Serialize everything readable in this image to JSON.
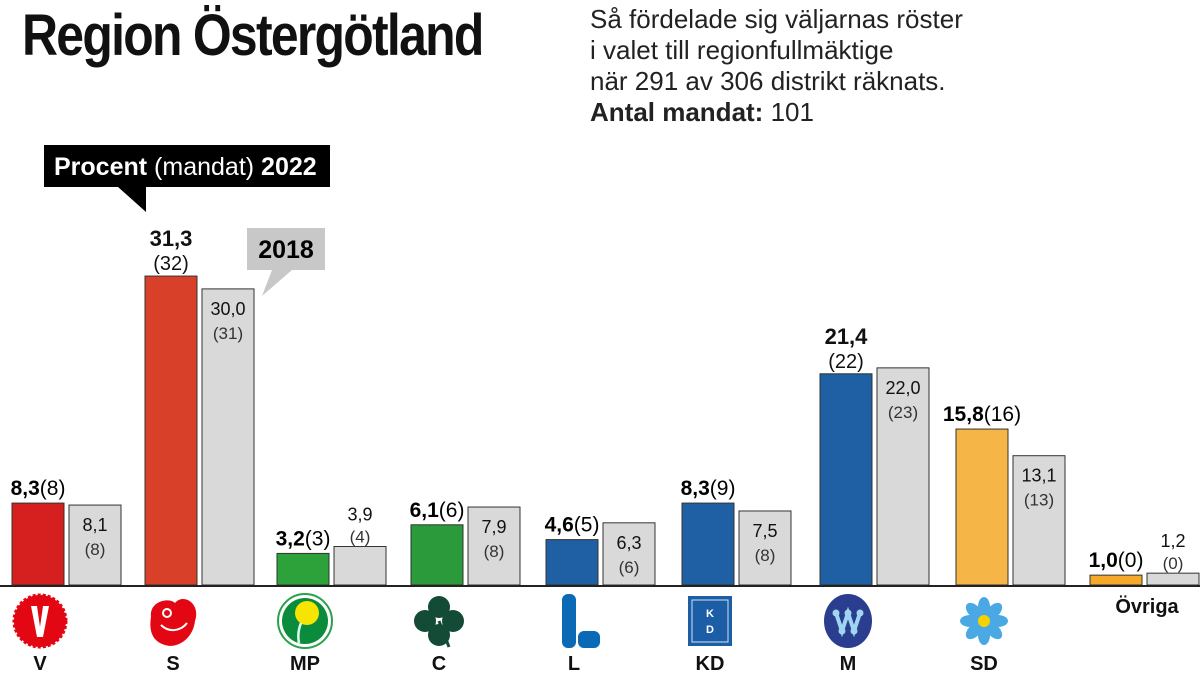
{
  "title": "Region Östergötland",
  "subtitle": {
    "line1": "Så fördelade sig väljarnas röster",
    "line2": "i valet till regionfullmäktige",
    "line3": "när 291 av 306 distrikt räknats.",
    "seats_label": "Antal mandat:",
    "seats_value": "101"
  },
  "legend": {
    "current_bold": "Procent",
    "current_mid": "(mandat)",
    "current_year": "2022",
    "previous_year": "2018"
  },
  "chart_data": {
    "type": "bar",
    "xlabel": "",
    "ylabel": "",
    "ylim": [
      0,
      31.3
    ],
    "grid": false,
    "categories": [
      "V",
      "S",
      "MP",
      "C",
      "L",
      "KD",
      "M",
      "SD",
      "Övriga"
    ],
    "series": [
      {
        "name": "2022",
        "values": [
          8.3,
          31.3,
          3.2,
          6.1,
          4.6,
          8.3,
          21.4,
          15.8,
          1.0
        ],
        "labels": [
          "8,3",
          "31,3",
          "3,2",
          "6,1",
          "4,6",
          "8,3",
          "21,4",
          "15,8",
          "1,0"
        ],
        "seats": [
          "(8)",
          "(32)",
          "(3)",
          "(6)",
          "(5)",
          "(9)",
          "(22)",
          "(16)",
          "(0)"
        ]
      },
      {
        "name": "2018",
        "values": [
          8.1,
          30.0,
          3.9,
          7.9,
          6.3,
          7.5,
          22.0,
          13.1,
          1.2
        ],
        "labels": [
          "8,1",
          "30,0",
          "3,9",
          "7,9",
          "6,3",
          "7,5",
          "22,0",
          "13,1",
          "1,2"
        ],
        "seats": [
          "(8)",
          "(31)",
          "(4)",
          "(8)",
          "(6)",
          "(8)",
          "(23)",
          "(13)",
          "(0)"
        ]
      }
    ],
    "colors": [
      "#d61f1f",
      "#d9402a",
      "#2ea23a",
      "#2a9a3a",
      "#1f5fa3",
      "#1f5fa3",
      "#1f5fa3",
      "#f5b547",
      "#f5a82a"
    ],
    "previous_color": "#d9d9d9",
    "logos": [
      "v-carnation-icon",
      "s-rose-icon",
      "mp-dandelion-icon",
      "c-clover-icon",
      "l-letter-icon",
      "kd-box-icon",
      "m-circle-icon",
      "sd-flower-icon",
      ""
    ]
  }
}
